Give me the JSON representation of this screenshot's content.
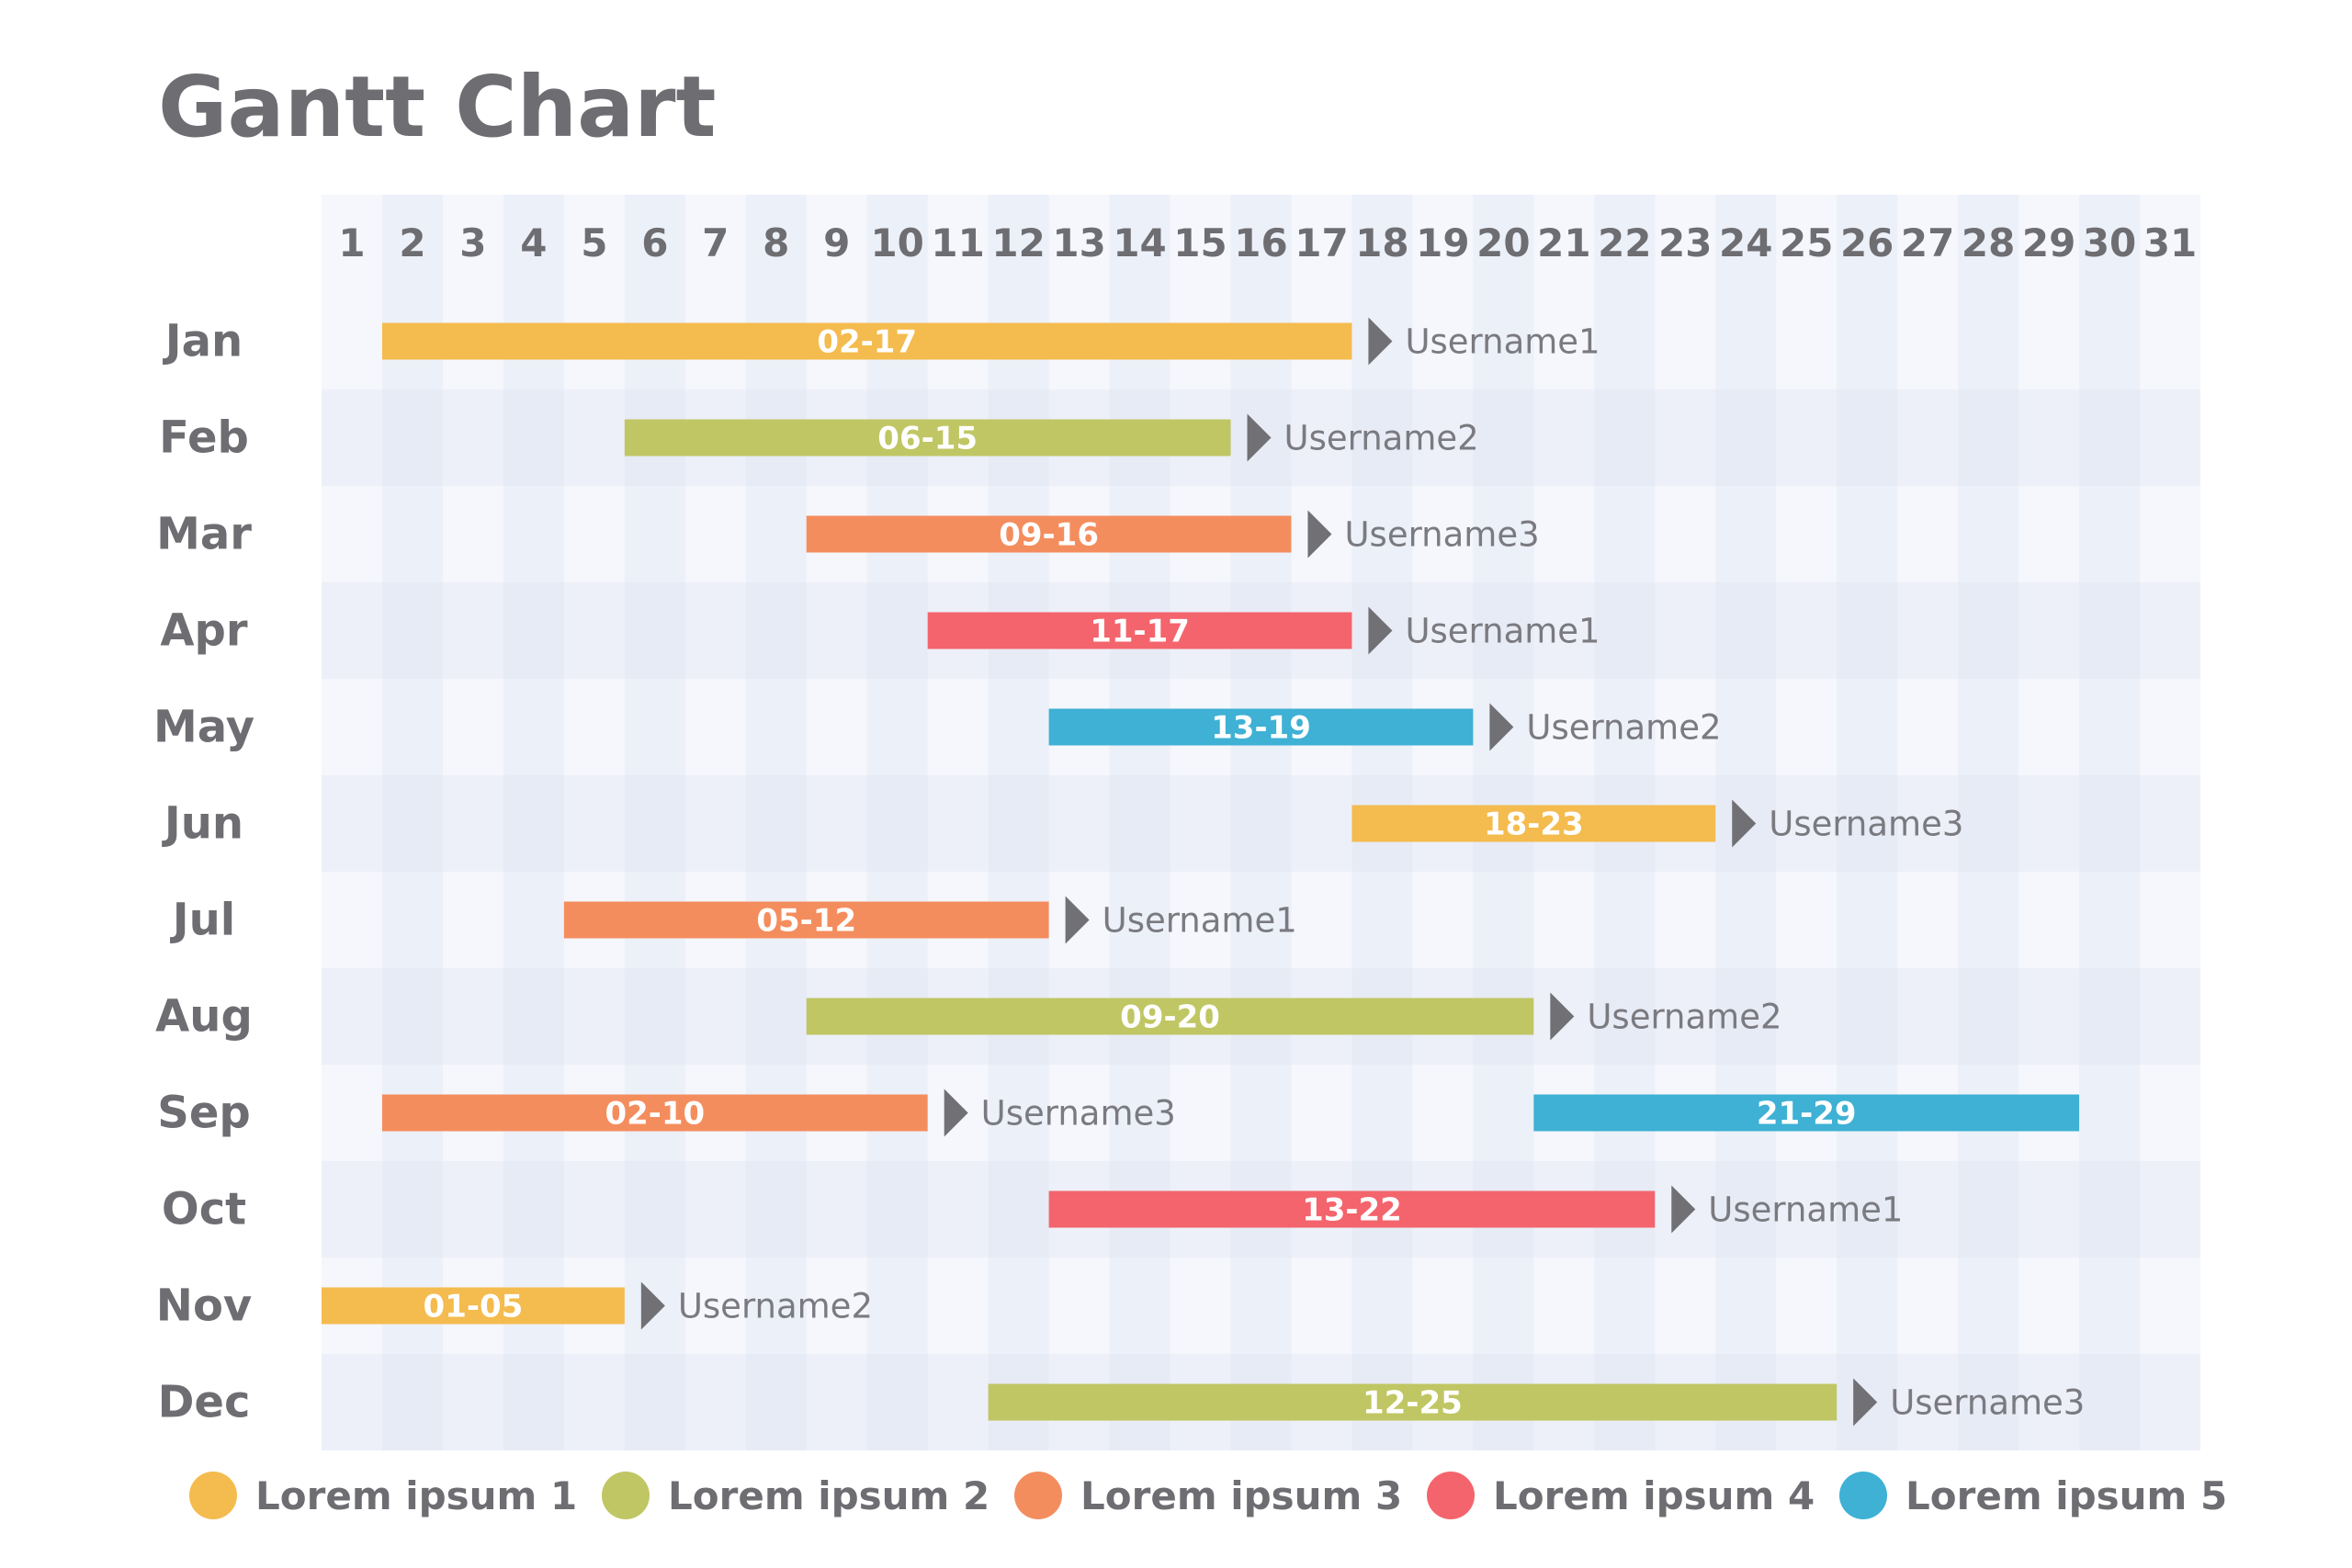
{
  "chart_data": {
    "type": "gantt",
    "title": "Gantt Chart",
    "days": [
      "1",
      "2",
      "3",
      "4",
      "5",
      "6",
      "7",
      "8",
      "9",
      "10",
      "11",
      "12",
      "13",
      "14",
      "15",
      "16",
      "17",
      "18",
      "19",
      "20",
      "21",
      "22",
      "23",
      "24",
      "25",
      "26",
      "27",
      "28",
      "29",
      "30",
      "31"
    ],
    "months": [
      "Jan",
      "Feb",
      "Mar",
      "Apr",
      "May",
      "Jun",
      "Jul",
      "Aug",
      "Sep",
      "Oct",
      "Nov",
      "Dec"
    ],
    "legend_position": "bottom",
    "series": [
      {
        "name": "Lorem ipsum 1",
        "color": "#F4BB4E"
      },
      {
        "name": "Lorem ipsum 2",
        "color": "#C0C663"
      },
      {
        "name": "Lorem ipsum 3",
        "color": "#F48D5E"
      },
      {
        "name": "Lorem ipsum 4",
        "color": "#F4646C"
      },
      {
        "name": "Lorem ipsum 5",
        "color": "#3EB1D4"
      }
    ],
    "tasks": [
      {
        "month": "Jan",
        "start": 2,
        "end": 17,
        "label": "02-17",
        "series": 0,
        "user": "Username1"
      },
      {
        "month": "Feb",
        "start": 6,
        "end": 15,
        "label": "06-15",
        "series": 1,
        "user": "Username2"
      },
      {
        "month": "Mar",
        "start": 9,
        "end": 16,
        "label": "09-16",
        "series": 2,
        "user": "Username3"
      },
      {
        "month": "Apr",
        "start": 11,
        "end": 17,
        "label": "11-17",
        "series": 3,
        "user": "Username1"
      },
      {
        "month": "May",
        "start": 13,
        "end": 19,
        "label": "13-19",
        "series": 4,
        "user": "Username2"
      },
      {
        "month": "Jun",
        "start": 18,
        "end": 23,
        "label": "18-23",
        "series": 0,
        "user": "Username3"
      },
      {
        "month": "Jul",
        "start": 5,
        "end": 12,
        "label": "05-12",
        "series": 2,
        "user": "Username1"
      },
      {
        "month": "Aug",
        "start": 9,
        "end": 20,
        "label": "09-20",
        "series": 1,
        "user": "Username2"
      },
      {
        "month": "Sep",
        "start": 2,
        "end": 10,
        "label": "02-10",
        "series": 2,
        "user": "Username3"
      },
      {
        "month": "Sep",
        "start": 21,
        "end": 29,
        "label": "21-29",
        "series": 4,
        "user": ""
      },
      {
        "month": "Oct",
        "start": 13,
        "end": 22,
        "label": "13-22",
        "series": 3,
        "user": "Username1"
      },
      {
        "month": "Nov",
        "start": 1,
        "end": 5,
        "label": "01-05",
        "series": 0,
        "user": "Username2"
      },
      {
        "month": "Dec",
        "start": 12,
        "end": 25,
        "label": "12-25",
        "series": 1,
        "user": "Username3"
      }
    ]
  },
  "colors": {
    "title": "#6D6D72",
    "axis_text": "#6D6D72",
    "user_text": "#7A7A80",
    "arrow": "#707075",
    "grid_light": "#F5F7FC",
    "grid_dark": "#EDF0F8",
    "bar_text": "#FFFFFF"
  }
}
